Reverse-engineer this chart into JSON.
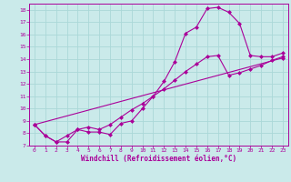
{
  "xlabel": "Windchill (Refroidissement éolien,°C)",
  "bg_color": "#caeaea",
  "grid_color": "#aad8d8",
  "line_color": "#aa0099",
  "spine_color": "#aa0099",
  "xlim": [
    -0.5,
    23.5
  ],
  "ylim": [
    7,
    18.5
  ],
  "xticks": [
    0,
    1,
    2,
    3,
    4,
    5,
    6,
    7,
    8,
    9,
    10,
    11,
    12,
    13,
    14,
    15,
    16,
    17,
    18,
    19,
    20,
    21,
    22,
    23
  ],
  "yticks": [
    7,
    8,
    9,
    10,
    11,
    12,
    13,
    14,
    15,
    16,
    17,
    18
  ],
  "line1_x": [
    0,
    1,
    2,
    3,
    4,
    5,
    6,
    7,
    8,
    9,
    10,
    11,
    12,
    13,
    14,
    15,
    16,
    17,
    18,
    19,
    20,
    21,
    22,
    23
  ],
  "line1_y": [
    8.7,
    7.8,
    7.3,
    7.3,
    8.3,
    8.1,
    8.1,
    7.9,
    8.8,
    9.0,
    10.0,
    11.0,
    12.2,
    13.8,
    16.1,
    16.6,
    18.1,
    18.2,
    17.8,
    16.9,
    14.3,
    14.2,
    14.2,
    14.5
  ],
  "line2_x": [
    0,
    1,
    2,
    3,
    4,
    5,
    6,
    7,
    8,
    9,
    10,
    11,
    12,
    13,
    14,
    15,
    16,
    17,
    18,
    19,
    20,
    21,
    22,
    23
  ],
  "line2_y": [
    8.7,
    7.8,
    7.3,
    7.8,
    8.3,
    8.5,
    8.3,
    8.7,
    9.3,
    9.9,
    10.4,
    11.0,
    11.6,
    12.3,
    13.0,
    13.6,
    14.2,
    14.3,
    12.7,
    12.9,
    13.2,
    13.5,
    13.9,
    14.2
  ],
  "line3_x": [
    0,
    23
  ],
  "line3_y": [
    8.7,
    14.1
  ],
  "marker": "D",
  "markersize": 2.5,
  "linewidth": 0.8
}
